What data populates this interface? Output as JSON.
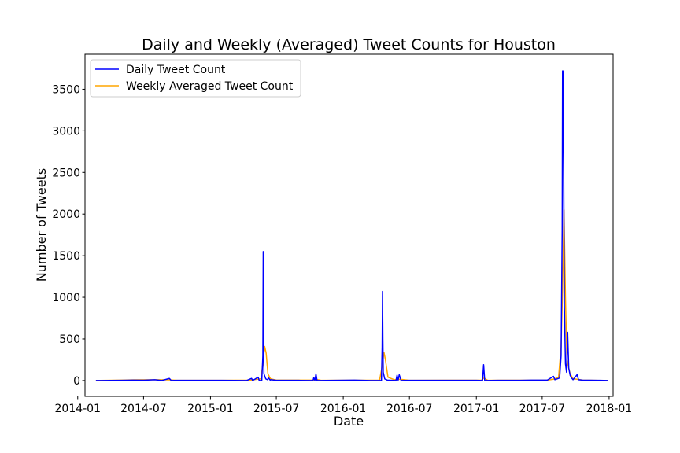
{
  "chart_data": {
    "type": "line",
    "title": "Daily and Weekly (Averaged) Tweet Counts for Houston",
    "xlabel": "Date",
    "ylabel": "Number of Tweets",
    "xlim": [
      "2014-01-21",
      "2018-01-12"
    ],
    "ylim": [
      -190,
      3920
    ],
    "x_ticks": [
      "2014-01",
      "2014-07",
      "2015-01",
      "2015-07",
      "2016-01",
      "2016-07",
      "2017-01",
      "2017-07",
      "2018-01"
    ],
    "y_ticks": [
      0,
      500,
      1000,
      1500,
      2000,
      2500,
      3000,
      3500
    ],
    "grid": false,
    "legend_position": "top-left",
    "series": [
      {
        "name": "Daily Tweet Count",
        "color": "#0000ff",
        "points": [
          [
            "2014-02-20",
            0
          ],
          [
            "2014-05-01",
            2
          ],
          [
            "2014-06-01",
            5
          ],
          [
            "2014-07-01",
            4
          ],
          [
            "2014-08-01",
            10
          ],
          [
            "2014-08-20",
            0
          ],
          [
            "2014-09-10",
            25
          ],
          [
            "2014-09-15",
            0
          ],
          [
            "2014-10-01",
            2
          ],
          [
            "2014-12-01",
            3
          ],
          [
            "2015-02-01",
            2
          ],
          [
            "2015-04-10",
            0
          ],
          [
            "2015-04-24",
            25
          ],
          [
            "2015-04-27",
            0
          ],
          [
            "2015-05-12",
            40
          ],
          [
            "2015-05-15",
            0
          ],
          [
            "2015-05-22",
            0
          ],
          [
            "2015-05-25",
            300
          ],
          [
            "2015-05-26",
            1550
          ],
          [
            "2015-05-27",
            400
          ],
          [
            "2015-05-28",
            80
          ],
          [
            "2015-06-02",
            20
          ],
          [
            "2015-06-07",
            10
          ],
          [
            "2015-06-10",
            30
          ],
          [
            "2015-06-14",
            5
          ],
          [
            "2015-06-16",
            10
          ],
          [
            "2015-07-01",
            2
          ],
          [
            "2015-09-01",
            2
          ],
          [
            "2015-10-10",
            0
          ],
          [
            "2015-10-12",
            35
          ],
          [
            "2015-10-15",
            0
          ],
          [
            "2015-10-18",
            80
          ],
          [
            "2015-10-21",
            0
          ],
          [
            "2016-02-01",
            5
          ],
          [
            "2016-03-15",
            0
          ],
          [
            "2016-04-15",
            0
          ],
          [
            "2016-04-17",
            400
          ],
          [
            "2016-04-18",
            1070
          ],
          [
            "2016-04-19",
            500
          ],
          [
            "2016-04-20",
            100
          ],
          [
            "2016-04-24",
            20
          ],
          [
            "2016-05-01",
            5
          ],
          [
            "2016-05-25",
            0
          ],
          [
            "2016-05-28",
            65
          ],
          [
            "2016-05-31",
            5
          ],
          [
            "2016-06-03",
            70
          ],
          [
            "2016-06-08",
            0
          ],
          [
            "2016-07-01",
            3
          ],
          [
            "2017-01-01",
            3
          ],
          [
            "2017-01-18",
            0
          ],
          [
            "2017-01-21",
            190
          ],
          [
            "2017-01-24",
            0
          ],
          [
            "2017-03-01",
            3
          ],
          [
            "2017-05-01",
            2
          ],
          [
            "2017-06-01",
            5
          ],
          [
            "2017-07-15",
            5
          ],
          [
            "2017-08-01",
            50
          ],
          [
            "2017-08-05",
            10
          ],
          [
            "2017-08-18",
            30
          ],
          [
            "2017-08-22",
            300
          ],
          [
            "2017-08-25",
            1800
          ],
          [
            "2017-08-26",
            3720
          ],
          [
            "2017-08-27",
            3720
          ],
          [
            "2017-08-29",
            2600
          ],
          [
            "2017-08-31",
            900
          ],
          [
            "2017-09-03",
            200
          ],
          [
            "2017-09-06",
            100
          ],
          [
            "2017-09-09",
            580
          ],
          [
            "2017-09-12",
            150
          ],
          [
            "2017-09-16",
            60
          ],
          [
            "2017-09-20",
            30
          ],
          [
            "2017-09-24",
            10
          ],
          [
            "2017-10-05",
            70
          ],
          [
            "2017-10-09",
            10
          ],
          [
            "2017-10-20",
            5
          ],
          [
            "2017-12-01",
            3
          ],
          [
            "2017-12-28",
            0
          ]
        ]
      },
      {
        "name": "Weekly Averaged Tweet Count",
        "color": "#ffa500",
        "points": [
          [
            "2014-02-20",
            0
          ],
          [
            "2014-05-01",
            5
          ],
          [
            "2014-06-05",
            8
          ],
          [
            "2014-08-01",
            10
          ],
          [
            "2014-09-10",
            8
          ],
          [
            "2014-10-01",
            2
          ],
          [
            "2015-02-01",
            3
          ],
          [
            "2015-04-20",
            5
          ],
          [
            "2015-05-20",
            20
          ],
          [
            "2015-05-26",
            250
          ],
          [
            "2015-05-30",
            410
          ],
          [
            "2015-06-03",
            330
          ],
          [
            "2015-06-08",
            80
          ],
          [
            "2015-06-15",
            20
          ],
          [
            "2015-07-01",
            5
          ],
          [
            "2015-10-10",
            5
          ],
          [
            "2015-10-18",
            15
          ],
          [
            "2015-11-01",
            3
          ],
          [
            "2016-04-10",
            5
          ],
          [
            "2016-04-18",
            200
          ],
          [
            "2016-04-22",
            340
          ],
          [
            "2016-04-26",
            250
          ],
          [
            "2016-05-03",
            40
          ],
          [
            "2016-05-20",
            10
          ],
          [
            "2016-06-05",
            15
          ],
          [
            "2016-07-01",
            3
          ],
          [
            "2017-01-15",
            5
          ],
          [
            "2017-01-22",
            30
          ],
          [
            "2017-02-01",
            3
          ],
          [
            "2017-07-15",
            5
          ],
          [
            "2017-08-01",
            15
          ],
          [
            "2017-08-15",
            40
          ],
          [
            "2017-08-22",
            400
          ],
          [
            "2017-08-26",
            1100
          ],
          [
            "2017-08-30",
            2050
          ],
          [
            "2017-09-03",
            1000
          ],
          [
            "2017-09-07",
            250
          ],
          [
            "2017-09-12",
            150
          ],
          [
            "2017-09-16",
            80
          ],
          [
            "2017-09-24",
            20
          ],
          [
            "2017-10-05",
            15
          ],
          [
            "2017-10-20",
            5
          ],
          [
            "2017-12-28",
            0
          ]
        ]
      }
    ]
  }
}
